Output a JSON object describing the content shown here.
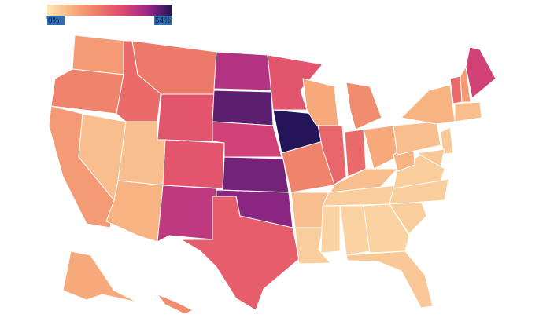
{
  "chart_data": {
    "type": "choropleth",
    "colorbar": {
      "min": {
        "value": 0,
        "label": "0%"
      },
      "max": {
        "value": 54,
        "label": "54%"
      },
      "colors": [
        "#fde6b6",
        "#f7b07e",
        "#ee7b68",
        "#e0496f",
        "#9e2a8a",
        "#231557"
      ]
    },
    "border_color": "#ffffff",
    "values": [
      15,
      20,
      15,
      8,
      25,
      22,
      30,
      8,
      10,
      30,
      38,
      40,
      49,
      35,
      47,
      45,
      28,
      30,
      54,
      20,
      8,
      5,
      12,
      26,
      18,
      25,
      12,
      8,
      5,
      4,
      4,
      4,
      6,
      5,
      5,
      5,
      10,
      8,
      10,
      25,
      15,
      35,
      8,
      6,
      6,
      12,
      18
    ]
  }
}
